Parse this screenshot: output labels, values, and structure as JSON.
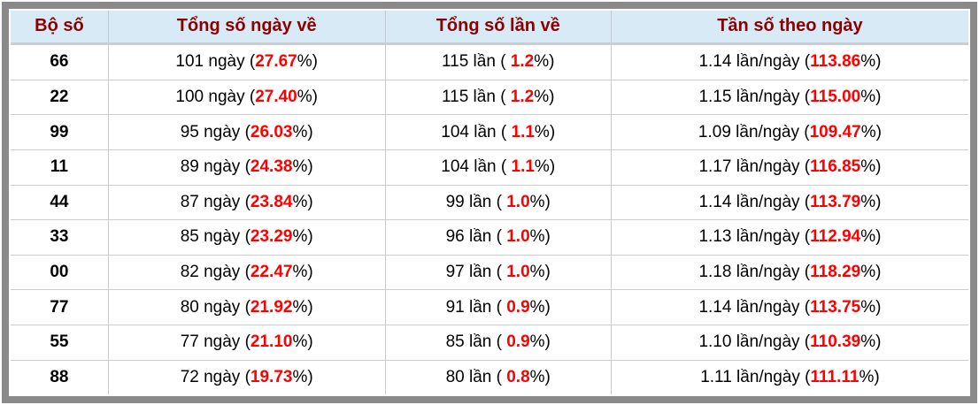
{
  "colors": {
    "header_bg": "#d7eaf6",
    "header_text": "#8b0000",
    "value_red": "#ff0000",
    "body_text": "#000000",
    "frame_gray": "#8a8a8a",
    "grid_line": "#cccccc"
  },
  "table": {
    "headers": [
      "Bộ số",
      "Tổng số ngày về",
      "Tổng số lần về",
      "Tần số theo ngày"
    ],
    "rows": [
      {
        "pair": "66",
        "days_prefix": "101 ngày (",
        "days_value": "27.67",
        "days_suffix": "%)",
        "times_prefix": "115 lần ( ",
        "times_value": "1.2",
        "times_suffix": "%)",
        "freq_prefix": "1.14 lần/ngày (",
        "freq_value": "113.86",
        "freq_suffix": "%)"
      },
      {
        "pair": "22",
        "days_prefix": "100 ngày (",
        "days_value": "27.40",
        "days_suffix": "%)",
        "times_prefix": "115 lần ( ",
        "times_value": "1.2",
        "times_suffix": "%)",
        "freq_prefix": "1.15 lần/ngày (",
        "freq_value": "115.00",
        "freq_suffix": "%)"
      },
      {
        "pair": "99",
        "days_prefix": "95 ngày (",
        "days_value": "26.03",
        "days_suffix": "%)",
        "times_prefix": "104 lần ( ",
        "times_value": "1.1",
        "times_suffix": "%)",
        "freq_prefix": "1.09 lần/ngày (",
        "freq_value": "109.47",
        "freq_suffix": "%)"
      },
      {
        "pair": "11",
        "days_prefix": "89 ngày (",
        "days_value": "24.38",
        "days_suffix": "%)",
        "times_prefix": "104 lần ( ",
        "times_value": "1.1",
        "times_suffix": "%)",
        "freq_prefix": "1.17 lần/ngày (",
        "freq_value": "116.85",
        "freq_suffix": "%)"
      },
      {
        "pair": "44",
        "days_prefix": "87 ngày (",
        "days_value": "23.84",
        "days_suffix": "%)",
        "times_prefix": "99 lần ( ",
        "times_value": "1.0",
        "times_suffix": "%)",
        "freq_prefix": "1.14 lần/ngày (",
        "freq_value": "113.79",
        "freq_suffix": "%)"
      },
      {
        "pair": "33",
        "days_prefix": "85 ngày (",
        "days_value": "23.29",
        "days_suffix": "%)",
        "times_prefix": "96 lần ( ",
        "times_value": "1.0",
        "times_suffix": "%)",
        "freq_prefix": "1.13 lần/ngày (",
        "freq_value": "112.94",
        "freq_suffix": "%)"
      },
      {
        "pair": "00",
        "days_prefix": "82 ngày (",
        "days_value": "22.47",
        "days_suffix": "%)",
        "times_prefix": "97 lần ( ",
        "times_value": "1.0",
        "times_suffix": "%)",
        "freq_prefix": "1.18 lần/ngày (",
        "freq_value": "118.29",
        "freq_suffix": "%)"
      },
      {
        "pair": "77",
        "days_prefix": "80 ngày (",
        "days_value": "21.92",
        "days_suffix": "%)",
        "times_prefix": "91 lần ( ",
        "times_value": "0.9",
        "times_suffix": "%)",
        "freq_prefix": "1.14 lần/ngày (",
        "freq_value": "113.75",
        "freq_suffix": "%)"
      },
      {
        "pair": "55",
        "days_prefix": "77 ngày (",
        "days_value": "21.10",
        "days_suffix": "%)",
        "times_prefix": "85 lần ( ",
        "times_value": "0.9",
        "times_suffix": "%)",
        "freq_prefix": "1.10 lần/ngày (",
        "freq_value": "110.39",
        "freq_suffix": "%)"
      },
      {
        "pair": "88",
        "days_prefix": "72 ngày (",
        "days_value": "19.73",
        "days_suffix": "%)",
        "times_prefix": "80 lần ( ",
        "times_value": "0.8",
        "times_suffix": "%)",
        "freq_prefix": "1.11 lần/ngày (",
        "freq_value": "111.11",
        "freq_suffix": "%)"
      }
    ]
  }
}
